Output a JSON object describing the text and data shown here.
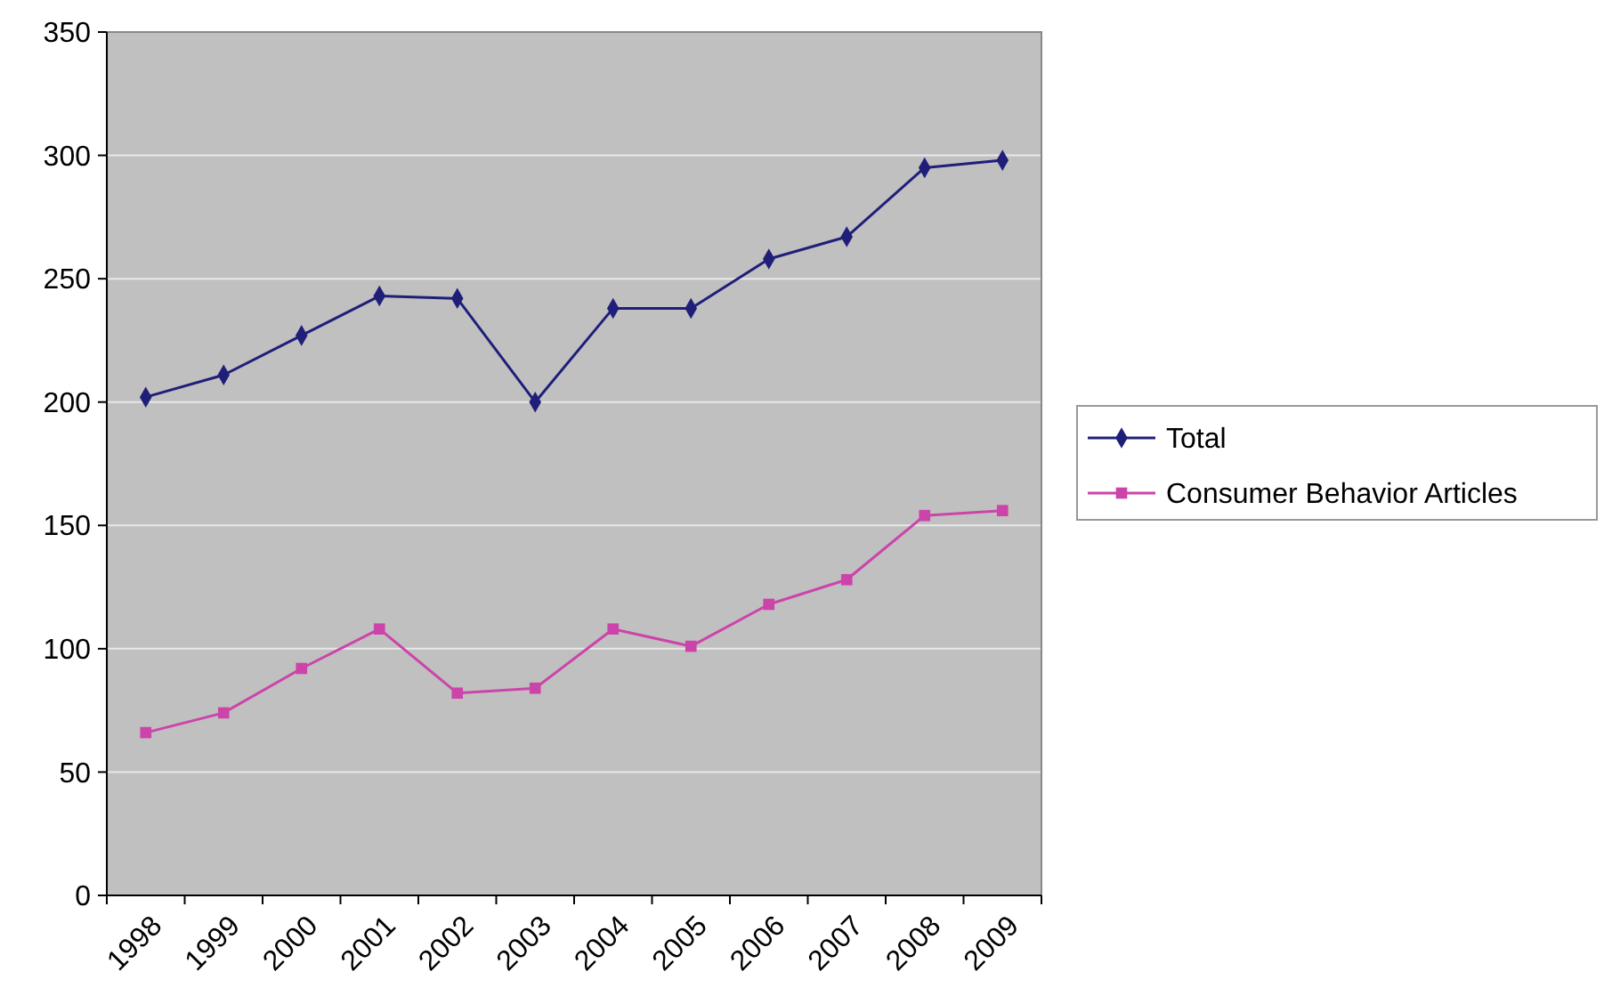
{
  "chart_data": {
    "type": "line",
    "categories": [
      "1998",
      "1999",
      "2000",
      "2001",
      "2002",
      "2003",
      "2004",
      "2005",
      "2006",
      "2007",
      "2008",
      "2009"
    ],
    "series": [
      {
        "name": "Total",
        "color": "#1f1f7a",
        "marker": "diamond",
        "values": [
          202,
          211,
          227,
          243,
          242,
          200,
          238,
          238,
          258,
          267,
          295,
          298
        ]
      },
      {
        "name": "Consumer Behavior Articles",
        "color": "#cc44aa",
        "marker": "square",
        "values": [
          66,
          74,
          92,
          108,
          82,
          84,
          108,
          101,
          118,
          128,
          154,
          156
        ]
      }
    ],
    "ylim": [
      0,
      350
    ],
    "yticks": [
      0,
      50,
      100,
      150,
      200,
      250,
      300,
      350
    ],
    "grid": "y",
    "legend": "right"
  }
}
